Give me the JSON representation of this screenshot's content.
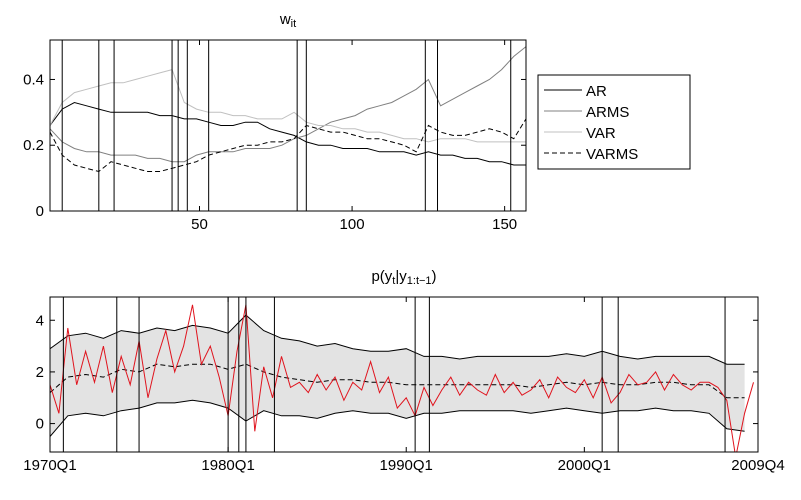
{
  "chart_data": [
    {
      "type": "line",
      "title": [
        "w",
        "it"
      ],
      "xlim": [
        1,
        157
      ],
      "ylim": [
        0,
        0.52
      ],
      "xticks": [
        50,
        100,
        150
      ],
      "yticks": [
        0,
        0.2,
        0.4
      ],
      "legend": "right",
      "vlines": [
        5,
        17,
        22,
        41,
        43,
        46,
        53,
        82,
        85,
        124,
        128,
        152
      ],
      "x": [
        1,
        5,
        9,
        13,
        17,
        21,
        25,
        29,
        33,
        37,
        41,
        45,
        49,
        53,
        57,
        61,
        65,
        69,
        73,
        77,
        81,
        85,
        89,
        93,
        97,
        101,
        105,
        109,
        113,
        117,
        121,
        125,
        129,
        133,
        137,
        141,
        145,
        149,
        153,
        157
      ],
      "series": [
        {
          "name": "AR",
          "color": "#000000",
          "dash": false,
          "values": [
            0.26,
            0.31,
            0.33,
            0.32,
            0.31,
            0.3,
            0.3,
            0.3,
            0.3,
            0.29,
            0.29,
            0.28,
            0.28,
            0.27,
            0.26,
            0.26,
            0.27,
            0.27,
            0.25,
            0.24,
            0.23,
            0.21,
            0.2,
            0.2,
            0.19,
            0.19,
            0.19,
            0.18,
            0.18,
            0.18,
            0.17,
            0.18,
            0.17,
            0.17,
            0.16,
            0.16,
            0.15,
            0.15,
            0.14,
            0.14
          ]
        },
        {
          "name": "ARMS",
          "color": "#808080",
          "dash": false,
          "values": [
            0.25,
            0.21,
            0.19,
            0.18,
            0.18,
            0.17,
            0.17,
            0.17,
            0.16,
            0.16,
            0.15,
            0.15,
            0.17,
            0.18,
            0.18,
            0.18,
            0.19,
            0.19,
            0.19,
            0.2,
            0.22,
            0.23,
            0.25,
            0.27,
            0.28,
            0.29,
            0.31,
            0.32,
            0.33,
            0.35,
            0.37,
            0.4,
            0.32,
            0.34,
            0.36,
            0.38,
            0.4,
            0.43,
            0.47,
            0.5
          ]
        },
        {
          "name": "VAR",
          "color": "#c0c0c0",
          "dash": false,
          "values": [
            0.26,
            0.33,
            0.36,
            0.37,
            0.38,
            0.39,
            0.39,
            0.4,
            0.41,
            0.42,
            0.43,
            0.33,
            0.31,
            0.3,
            0.3,
            0.29,
            0.29,
            0.28,
            0.28,
            0.28,
            0.3,
            0.27,
            0.26,
            0.26,
            0.25,
            0.25,
            0.24,
            0.24,
            0.23,
            0.22,
            0.22,
            0.21,
            0.22,
            0.22,
            0.22,
            0.21,
            0.21,
            0.21,
            0.21,
            0.21
          ]
        },
        {
          "name": "VARMS",
          "color": "#000000",
          "dash": true,
          "values": [
            0.24,
            0.17,
            0.14,
            0.13,
            0.12,
            0.15,
            0.14,
            0.13,
            0.12,
            0.12,
            0.13,
            0.14,
            0.15,
            0.17,
            0.18,
            0.19,
            0.2,
            0.2,
            0.21,
            0.21,
            0.22,
            0.26,
            0.25,
            0.24,
            0.24,
            0.23,
            0.22,
            0.22,
            0.21,
            0.2,
            0.18,
            0.26,
            0.24,
            0.23,
            0.23,
            0.24,
            0.25,
            0.24,
            0.22,
            0.28
          ]
        }
      ]
    },
    {
      "type": "line",
      "title": [
        "p(y",
        "t",
        "|y",
        "1:t−1",
        ")"
      ],
      "xlim": [
        1970,
        2009.75
      ],
      "ylim": [
        -1.1,
        4.9
      ],
      "xticks": [
        {
          "value": 1970,
          "label": "1970Q1"
        },
        {
          "value": 1980,
          "label": "1980Q1"
        },
        {
          "value": 1990,
          "label": "1990Q1"
        },
        {
          "value": 2000,
          "label": "2000Q1"
        },
        {
          "value": 2009.75,
          "label": "2009Q4"
        }
      ],
      "yticks": [
        0,
        2,
        4
      ],
      "vlines": [
        1970.75,
        1973.75,
        1975,
        1980,
        1980.6,
        1981,
        1982.6,
        1990.5,
        1991.3,
        2001,
        2001.9,
        2007.9
      ],
      "band": {
        "color": "#e3e3e3",
        "x": [
          1970,
          1971,
          1972,
          1973,
          1974,
          1975,
          1976,
          1977,
          1978,
          1979,
          1980,
          1981,
          1982,
          1983,
          1984,
          1985,
          1986,
          1987,
          1988,
          1989,
          1990,
          1991,
          1992,
          1993,
          1994,
          1995,
          1996,
          1997,
          1998,
          1999,
          2000,
          2001,
          2002,
          2003,
          2004,
          2005,
          2006,
          2007,
          2008,
          2009
        ],
        "upper": [
          2.9,
          3.4,
          3.5,
          3.3,
          3.6,
          3.5,
          3.7,
          3.6,
          3.8,
          3.7,
          3.5,
          4.2,
          3.6,
          3.3,
          3.2,
          3.0,
          3.1,
          2.9,
          2.8,
          2.8,
          2.9,
          2.6,
          2.6,
          2.5,
          2.6,
          2.6,
          2.6,
          2.6,
          2.6,
          2.7,
          2.6,
          2.8,
          2.6,
          2.5,
          2.6,
          2.6,
          2.6,
          2.6,
          2.3,
          2.3
        ],
        "lower": [
          -0.5,
          0.3,
          0.4,
          0.3,
          0.5,
          0.6,
          0.8,
          0.8,
          0.9,
          0.8,
          0.6,
          0.1,
          0.5,
          0.3,
          0.3,
          0.2,
          0.4,
          0.5,
          0.4,
          0.4,
          0.2,
          0.4,
          0.4,
          0.5,
          0.5,
          0.5,
          0.5,
          0.4,
          0.5,
          0.6,
          0.5,
          0.4,
          0.5,
          0.5,
          0.6,
          0.5,
          0.5,
          0.4,
          -0.2,
          -0.3
        ]
      },
      "series": [
        {
          "color": "#000000",
          "dash": true,
          "x": [
            1970,
            1971,
            1972,
            1973,
            1974,
            1975,
            1976,
            1977,
            1978,
            1979,
            1980,
            1981,
            1982,
            1983,
            1984,
            1985,
            1986,
            1987,
            1988,
            1989,
            1990,
            1991,
            1992,
            1993,
            1994,
            1995,
            1996,
            1997,
            1998,
            1999,
            2000,
            2001,
            2002,
            2003,
            2004,
            2005,
            2006,
            2007,
            2008,
            2009
          ],
          "values": [
            1.2,
            1.8,
            1.9,
            1.8,
            2.1,
            2.0,
            2.3,
            2.2,
            2.3,
            2.3,
            2.1,
            2.3,
            2.0,
            1.8,
            1.7,
            1.6,
            1.7,
            1.7,
            1.6,
            1.6,
            1.5,
            1.5,
            1.5,
            1.5,
            1.5,
            1.5,
            1.5,
            1.4,
            1.5,
            1.6,
            1.5,
            1.6,
            1.5,
            1.5,
            1.6,
            1.6,
            1.5,
            1.5,
            1.0,
            1.0
          ]
        },
        {
          "color": "#e0141e",
          "dash": false,
          "x": [
            1970,
            1970.5,
            1971,
            1971.5,
            1972,
            1972.5,
            1973,
            1973.5,
            1974,
            1974.5,
            1975,
            1975.5,
            1976,
            1976.5,
            1977,
            1977.5,
            1978,
            1978.5,
            1979,
            1979.5,
            1980,
            1980.5,
            1981,
            1981.5,
            1982,
            1982.5,
            1983,
            1983.5,
            1984,
            1984.5,
            1985,
            1985.5,
            1986,
            1986.5,
            1987,
            1987.5,
            1988,
            1988.5,
            1989,
            1989.5,
            1990,
            1990.5,
            1991,
            1991.5,
            1992,
            1992.5,
            1993,
            1993.5,
            1994,
            1994.5,
            1995,
            1995.5,
            1996,
            1996.5,
            1997,
            1997.5,
            1998,
            1998.5,
            1999,
            1999.5,
            2000,
            2000.5,
            2001,
            2001.5,
            2002,
            2002.5,
            2003,
            2003.5,
            2004,
            2004.5,
            2005,
            2005.5,
            2006,
            2006.5,
            2007,
            2007.5,
            2008,
            2008.5,
            2009,
            2009.5
          ],
          "values": [
            1.5,
            0.4,
            3.7,
            1.5,
            2.8,
            1.6,
            3.0,
            1.2,
            2.6,
            1.5,
            3.2,
            1.0,
            2.5,
            3.6,
            2.0,
            3.0,
            4.6,
            2.3,
            3.0,
            1.8,
            0.3,
            2.8,
            4.6,
            -0.3,
            2.2,
            1.0,
            2.6,
            1.4,
            1.6,
            1.2,
            1.9,
            1.3,
            1.8,
            0.9,
            1.6,
            1.3,
            2.4,
            1.2,
            1.8,
            0.6,
            1.0,
            0.3,
            1.4,
            0.7,
            1.3,
            1.8,
            1.1,
            1.6,
            1.3,
            1.1,
            1.9,
            1.2,
            1.6,
            1.1,
            1.3,
            1.7,
            1.0,
            1.8,
            1.4,
            1.2,
            1.7,
            1.0,
            1.8,
            0.8,
            1.2,
            1.9,
            1.5,
            1.6,
            2.0,
            1.3,
            1.9,
            1.5,
            1.3,
            1.6,
            1.6,
            1.4,
            0.9,
            -1.3,
            0.4,
            1.6
          ]
        }
      ]
    }
  ]
}
